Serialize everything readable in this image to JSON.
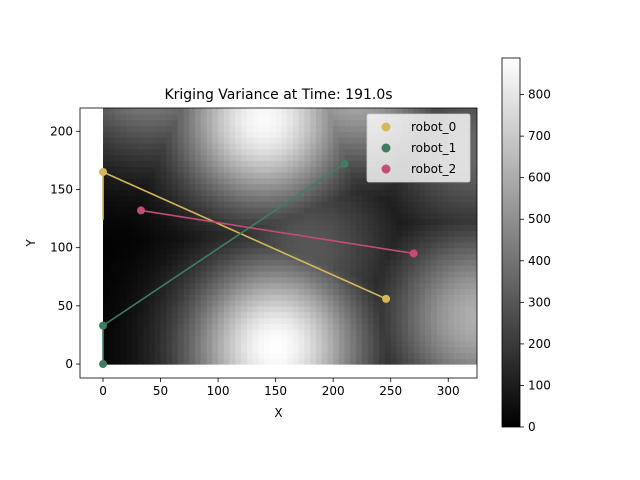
{
  "chart_data": {
    "type": "scatter",
    "title": "Kriging Variance at Time: 191.0s",
    "xlabel": "X",
    "ylabel": "Y",
    "xlim": [
      -20,
      325
    ],
    "ylim": [
      -12,
      220
    ],
    "xticks": [
      0,
      50,
      100,
      150,
      200,
      250,
      300
    ],
    "yticks": [
      0,
      50,
      100,
      150,
      200
    ],
    "grid": false,
    "legend_position": "top-right",
    "series": [
      {
        "name": "robot_0",
        "color": "#d4b85a",
        "path": [
          [
            0,
            124
          ],
          [
            0,
            165
          ]
        ],
        "segment": [
          [
            0,
            165
          ],
          [
            246,
            56
          ]
        ],
        "points": [
          [
            0,
            165
          ],
          [
            246,
            56
          ]
        ]
      },
      {
        "name": "robot_1",
        "color": "#3f7d63",
        "path": [
          [
            0,
            0
          ],
          [
            0,
            33
          ]
        ],
        "segment": [
          [
            0,
            33
          ],
          [
            210,
            172
          ]
        ],
        "points": [
          [
            0,
            0
          ],
          [
            0,
            33
          ],
          [
            210,
            172
          ]
        ]
      },
      {
        "name": "robot_2",
        "color": "#c44c73",
        "path": [],
        "segment": [
          [
            33,
            132
          ],
          [
            270,
            95
          ]
        ],
        "points": [
          [
            33,
            132
          ],
          [
            270,
            95
          ]
        ]
      }
    ],
    "heatmap": {
      "extent_x": [
        0,
        325
      ],
      "extent_y": [
        0,
        220
      ],
      "colormap": "gray",
      "colorbar": {
        "min": 0,
        "max": 880,
        "ticks": [
          0,
          100,
          200,
          300,
          400,
          500,
          600,
          700,
          800
        ]
      },
      "peaks": [
        {
          "x": 150,
          "y": 15,
          "value": 880
        },
        {
          "x": 140,
          "y": 210,
          "value": 860
        },
        {
          "x": 220,
          "y": 240,
          "value": 600
        },
        {
          "x": 325,
          "y": 40,
          "value": 600
        },
        {
          "x": 320,
          "y": 185,
          "value": 350
        },
        {
          "x": 40,
          "y": 255,
          "value": 500
        },
        {
          "x": 180,
          "y": 100,
          "value": 300
        }
      ]
    }
  }
}
